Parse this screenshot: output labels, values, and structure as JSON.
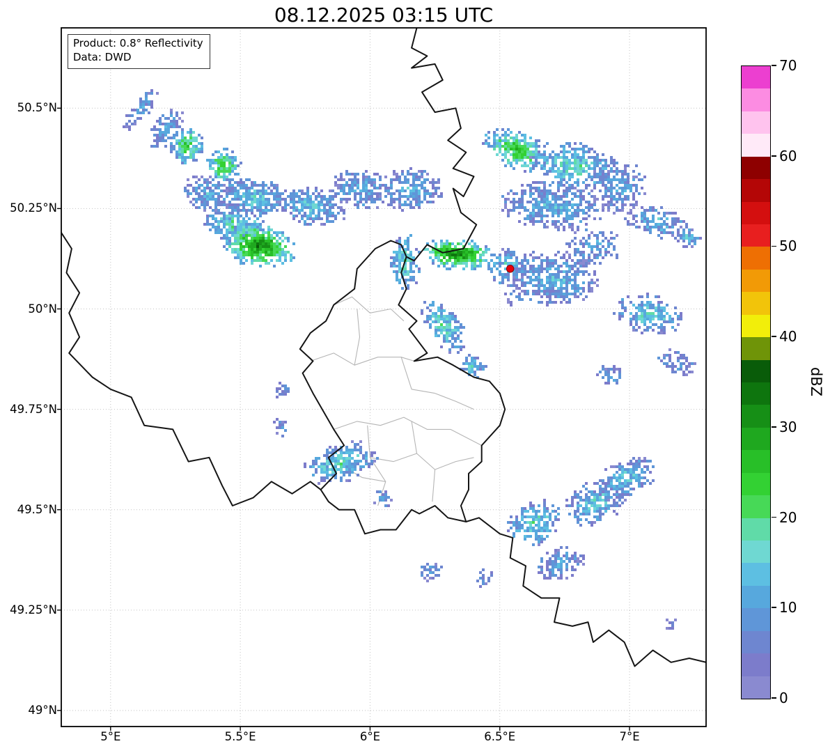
{
  "title": "08.12.2025 03:15 UTC",
  "info_box": {
    "product": "Product: 0.8° Reflectivity",
    "source": "Data: DWD"
  },
  "colorbar": {
    "label": "dBZ",
    "min": 0,
    "max": 70,
    "band_dbz": 2.5,
    "tick_values": [
      0,
      10,
      20,
      30,
      40,
      50,
      60,
      70
    ],
    "colors": [
      "#8a8ad0",
      "#7c7ccb",
      "#6e86d0",
      "#5f96d8",
      "#57a8dd",
      "#5dbfe2",
      "#6fd8d2",
      "#60dba8",
      "#47d957",
      "#33d133",
      "#28bf28",
      "#1fa81f",
      "#168f16",
      "#0e750e",
      "#095c09",
      "#6f9408",
      "#f2ee0a",
      "#f2c40a",
      "#f29a06",
      "#ee6f03",
      "#e81f1f",
      "#d40f0f",
      "#b40606",
      "#8e0000",
      "#ffeaf8",
      "#ffc3ee",
      "#fc8ce2",
      "#ec3fd0"
    ]
  },
  "axes": {
    "lon_ticks": [
      {
        "value": 5.0,
        "label": "5°E"
      },
      {
        "value": 5.5,
        "label": "5.5°E"
      },
      {
        "value": 6.0,
        "label": "6°E"
      },
      {
        "value": 6.5,
        "label": "6.5°E"
      },
      {
        "value": 7.0,
        "label": "7°E"
      }
    ],
    "lat_ticks": [
      {
        "value": 50.5,
        "label": "50.5°N"
      },
      {
        "value": 50.25,
        "label": "50.25°N"
      },
      {
        "value": 50.0,
        "label": "50°N"
      },
      {
        "value": 49.75,
        "label": "49.75°N"
      },
      {
        "value": 49.5,
        "label": "49.5°N"
      },
      {
        "value": 49.25,
        "label": "49.25°N"
      },
      {
        "value": 49.0,
        "label": "49°N"
      }
    ]
  },
  "radar_site": {
    "lon": 6.54,
    "lat": 50.1,
    "marker_color": "#e8000b"
  },
  "chart_data": {
    "type": "heatmap",
    "title": "08.12.2025 03:15 UTC",
    "value_units": "dBZ",
    "value_range": [
      0,
      70
    ],
    "extent": {
      "lon_min": 4.81,
      "lon_max": 7.295,
      "lat_min": 48.96,
      "lat_max": 50.7
    },
    "echo_clusters": [
      {
        "lon": 5.11,
        "lat": 50.5,
        "w": 0.07,
        "h": 0.14,
        "rot": 35,
        "dbz": 10,
        "den": 0.65
      },
      {
        "lon": 5.21,
        "lat": 50.45,
        "w": 0.1,
        "h": 0.12,
        "rot": 35,
        "dbz": 12,
        "den": 0.7
      },
      {
        "lon": 5.29,
        "lat": 50.41,
        "w": 0.14,
        "h": 0.1,
        "rot": 30,
        "dbz": 24,
        "den": 0.75
      },
      {
        "lon": 5.43,
        "lat": 50.36,
        "w": 0.14,
        "h": 0.09,
        "rot": 25,
        "dbz": 26,
        "den": 0.8
      },
      {
        "lon": 5.37,
        "lat": 50.29,
        "w": 0.22,
        "h": 0.09,
        "rot": 15,
        "dbz": 12,
        "den": 0.7
      },
      {
        "lon": 5.55,
        "lat": 50.28,
        "w": 0.3,
        "h": 0.1,
        "rot": 12,
        "dbz": 16,
        "den": 0.78
      },
      {
        "lon": 5.77,
        "lat": 50.26,
        "w": 0.28,
        "h": 0.1,
        "rot": 10,
        "dbz": 14,
        "den": 0.72
      },
      {
        "lon": 5.96,
        "lat": 50.3,
        "w": 0.24,
        "h": 0.1,
        "rot": 8,
        "dbz": 12,
        "den": 0.68
      },
      {
        "lon": 6.15,
        "lat": 50.3,
        "w": 0.26,
        "h": 0.11,
        "rot": 5,
        "dbz": 13,
        "den": 0.68
      },
      {
        "lon": 5.48,
        "lat": 50.21,
        "w": 0.26,
        "h": 0.09,
        "rot": 10,
        "dbz": 20,
        "den": 0.8
      },
      {
        "lon": 5.57,
        "lat": 50.16,
        "w": 0.3,
        "h": 0.11,
        "rot": 8,
        "dbz": 33,
        "den": 0.88
      },
      {
        "lon": 6.13,
        "lat": 50.12,
        "w": 0.12,
        "h": 0.15,
        "rot": 0,
        "dbz": 18,
        "den": 0.72
      },
      {
        "lon": 6.33,
        "lat": 50.14,
        "w": 0.28,
        "h": 0.08,
        "rot": 5,
        "dbz": 34,
        "den": 0.88
      },
      {
        "lon": 6.52,
        "lat": 50.11,
        "w": 0.16,
        "h": 0.1,
        "rot": 0,
        "dbz": 15,
        "den": 0.6
      },
      {
        "lon": 6.56,
        "lat": 50.4,
        "w": 0.28,
        "h": 0.1,
        "rot": 20,
        "dbz": 26,
        "den": 0.78
      },
      {
        "lon": 6.78,
        "lat": 50.36,
        "w": 0.36,
        "h": 0.12,
        "rot": 10,
        "dbz": 18,
        "den": 0.72
      },
      {
        "lon": 6.7,
        "lat": 50.26,
        "w": 0.42,
        "h": 0.12,
        "rot": 5,
        "dbz": 13,
        "den": 0.72
      },
      {
        "lon": 6.95,
        "lat": 50.31,
        "w": 0.22,
        "h": 0.14,
        "rot": 0,
        "dbz": 11,
        "den": 0.6
      },
      {
        "lon": 6.7,
        "lat": 50.08,
        "w": 0.36,
        "h": 0.14,
        "rot": 5,
        "dbz": 13,
        "den": 0.68
      },
      {
        "lon": 6.86,
        "lat": 50.16,
        "w": 0.22,
        "h": 0.1,
        "rot": 0,
        "dbz": 11,
        "den": 0.55
      },
      {
        "lon": 6.28,
        "lat": 49.96,
        "w": 0.13,
        "h": 0.16,
        "rot": -35,
        "dbz": 18,
        "den": 0.72
      },
      {
        "lon": 6.39,
        "lat": 49.86,
        "w": 0.11,
        "h": 0.07,
        "rot": -20,
        "dbz": 15,
        "den": 0.65
      },
      {
        "lon": 7.1,
        "lat": 50.22,
        "w": 0.26,
        "h": 0.08,
        "rot": 10,
        "dbz": 13,
        "den": 0.62
      },
      {
        "lon": 7.22,
        "lat": 50.18,
        "w": 0.1,
        "h": 0.05,
        "rot": 0,
        "dbz": 16,
        "den": 0.7
      },
      {
        "lon": 7.07,
        "lat": 49.99,
        "w": 0.28,
        "h": 0.1,
        "rot": 10,
        "dbz": 17,
        "den": 0.68
      },
      {
        "lon": 7.17,
        "lat": 49.87,
        "w": 0.18,
        "h": 0.06,
        "rot": 15,
        "dbz": 10,
        "den": 0.6
      },
      {
        "lon": 5.66,
        "lat": 49.8,
        "w": 0.07,
        "h": 0.05,
        "rot": 0,
        "dbz": 8,
        "den": 0.6
      },
      {
        "lon": 5.65,
        "lat": 49.71,
        "w": 0.06,
        "h": 0.06,
        "rot": 0,
        "dbz": 8,
        "den": 0.6
      },
      {
        "lon": 5.88,
        "lat": 49.62,
        "w": 0.3,
        "h": 0.1,
        "rot": -15,
        "dbz": 17,
        "den": 0.72
      },
      {
        "lon": 6.04,
        "lat": 49.53,
        "w": 0.08,
        "h": 0.05,
        "rot": -10,
        "dbz": 10,
        "den": 0.6
      },
      {
        "lon": 6.23,
        "lat": 49.35,
        "w": 0.1,
        "h": 0.05,
        "rot": -10,
        "dbz": 9,
        "den": 0.6
      },
      {
        "lon": 6.44,
        "lat": 49.33,
        "w": 0.07,
        "h": 0.05,
        "rot": 0,
        "dbz": 9,
        "den": 0.6
      },
      {
        "lon": 6.63,
        "lat": 49.47,
        "w": 0.22,
        "h": 0.11,
        "rot": -25,
        "dbz": 18,
        "den": 0.72
      },
      {
        "lon": 6.86,
        "lat": 49.52,
        "w": 0.24,
        "h": 0.11,
        "rot": -20,
        "dbz": 16,
        "den": 0.68
      },
      {
        "lon": 6.73,
        "lat": 49.37,
        "w": 0.2,
        "h": 0.08,
        "rot": -15,
        "dbz": 12,
        "den": 0.62
      },
      {
        "lon": 6.98,
        "lat": 49.58,
        "w": 0.26,
        "h": 0.1,
        "rot": -25,
        "dbz": 14,
        "den": 0.65
      },
      {
        "lon": 7.16,
        "lat": 49.22,
        "w": 0.08,
        "h": 0.035,
        "rot": 10,
        "dbz": 8,
        "den": 0.6
      },
      {
        "lon": 6.92,
        "lat": 49.84,
        "w": 0.14,
        "h": 0.05,
        "rot": 15,
        "dbz": 10,
        "den": 0.55
      },
      {
        "lon": 6.56,
        "lat": 50.04,
        "w": 0.1,
        "h": 0.06,
        "rot": 0,
        "dbz": 10,
        "den": 0.5
      }
    ],
    "borders_national": [
      [
        [
          6.18,
          50.7
        ],
        [
          6.16,
          50.65
        ],
        [
          6.22,
          50.63
        ],
        [
          6.16,
          50.6
        ],
        [
          6.25,
          50.61
        ],
        [
          6.28,
          50.57
        ],
        [
          6.2,
          50.54
        ],
        [
          6.25,
          50.49
        ],
        [
          6.33,
          50.5
        ],
        [
          6.35,
          50.45
        ],
        [
          6.3,
          50.42
        ],
        [
          6.37,
          50.39
        ],
        [
          6.32,
          50.35
        ],
        [
          6.4,
          50.33
        ],
        [
          6.36,
          50.28
        ],
        [
          6.32,
          50.3
        ],
        [
          6.35,
          50.24
        ],
        [
          6.41,
          50.21
        ],
        [
          6.36,
          50.15
        ],
        [
          6.28,
          50.14
        ],
        [
          6.22,
          50.16
        ],
        [
          6.17,
          50.12
        ],
        [
          6.14,
          50.13
        ]
      ],
      [
        [
          6.14,
          50.13
        ],
        [
          6.12,
          50.09
        ],
        [
          6.14,
          50.05
        ],
        [
          6.11,
          50.01
        ],
        [
          6.18,
          49.97
        ],
        [
          6.15,
          49.95
        ],
        [
          6.22,
          49.89
        ],
        [
          6.17,
          49.87
        ],
        [
          6.26,
          49.88
        ],
        [
          6.32,
          49.86
        ],
        [
          6.4,
          49.83
        ],
        [
          6.46,
          49.82
        ],
        [
          6.5,
          49.79
        ],
        [
          6.52,
          49.75
        ],
        [
          6.5,
          49.71
        ],
        [
          6.43,
          49.66
        ],
        [
          6.43,
          49.62
        ],
        [
          6.38,
          49.59
        ],
        [
          6.38,
          49.55
        ],
        [
          6.35,
          49.51
        ],
        [
          6.37,
          49.47
        ],
        [
          6.3,
          49.48
        ],
        [
          6.25,
          49.51
        ],
        [
          6.19,
          49.49
        ],
        [
          6.16,
          49.5
        ],
        [
          6.1,
          49.45
        ],
        [
          6.04,
          49.45
        ],
        [
          5.98,
          49.44
        ],
        [
          5.94,
          49.5
        ],
        [
          5.88,
          49.5
        ],
        [
          5.84,
          49.52
        ],
        [
          5.81,
          49.55
        ],
        [
          5.87,
          49.59
        ],
        [
          5.84,
          49.63
        ],
        [
          5.9,
          49.66
        ],
        [
          5.86,
          49.7
        ],
        [
          5.78,
          49.79
        ],
        [
          5.74,
          49.84
        ],
        [
          5.78,
          49.87
        ],
        [
          5.73,
          49.9
        ],
        [
          5.77,
          49.94
        ],
        [
          5.83,
          49.97
        ],
        [
          5.86,
          50.01
        ],
        [
          5.94,
          50.05
        ],
        [
          5.95,
          50.1
        ],
        [
          6.02,
          50.15
        ],
        [
          6.08,
          50.17
        ],
        [
          6.12,
          50.16
        ],
        [
          6.14,
          50.13
        ]
      ],
      [
        [
          4.81,
          50.19
        ],
        [
          4.85,
          50.15
        ],
        [
          4.83,
          50.09
        ],
        [
          4.88,
          50.04
        ],
        [
          4.84,
          49.99
        ],
        [
          4.88,
          49.93
        ],
        [
          4.84,
          49.89
        ],
        [
          4.93,
          49.83
        ],
        [
          5.0,
          49.8
        ],
        [
          5.08,
          49.78
        ],
        [
          5.13,
          49.71
        ],
        [
          5.24,
          49.7
        ],
        [
          5.3,
          49.62
        ],
        [
          5.38,
          49.63
        ],
        [
          5.43,
          49.56
        ],
        [
          5.47,
          49.51
        ],
        [
          5.55,
          49.53
        ],
        [
          5.62,
          49.57
        ],
        [
          5.7,
          49.54
        ],
        [
          5.77,
          49.57
        ],
        [
          5.81,
          49.55
        ]
      ],
      [
        [
          6.37,
          49.47
        ],
        [
          6.42,
          49.48
        ],
        [
          6.5,
          49.44
        ],
        [
          6.55,
          49.43
        ],
        [
          6.54,
          49.38
        ],
        [
          6.6,
          49.36
        ],
        [
          6.59,
          49.31
        ],
        [
          6.66,
          49.28
        ],
        [
          6.73,
          49.28
        ],
        [
          6.71,
          49.22
        ],
        [
          6.78,
          49.21
        ],
        [
          6.84,
          49.22
        ],
        [
          6.86,
          49.17
        ],
        [
          6.92,
          49.2
        ],
        [
          6.98,
          49.17
        ],
        [
          7.02,
          49.11
        ],
        [
          7.09,
          49.15
        ],
        [
          7.16,
          49.12
        ],
        [
          7.23,
          49.13
        ],
        [
          7.295,
          49.12
        ]
      ]
    ],
    "borders_regional": [
      [
        [
          5.86,
          50.01
        ],
        [
          5.93,
          50.03
        ],
        [
          6.0,
          49.99
        ],
        [
          6.08,
          50.0
        ],
        [
          6.13,
          49.97
        ]
      ],
      [
        [
          5.77,
          49.87
        ],
        [
          5.86,
          49.89
        ],
        [
          5.94,
          49.86
        ],
        [
          6.03,
          49.88
        ],
        [
          6.12,
          49.88
        ],
        [
          6.17,
          49.87
        ]
      ],
      [
        [
          5.94,
          49.86
        ],
        [
          5.96,
          49.93
        ],
        [
          5.95,
          50.0
        ]
      ],
      [
        [
          6.12,
          49.88
        ],
        [
          6.16,
          49.8
        ],
        [
          6.25,
          49.79
        ]
      ],
      [
        [
          5.86,
          49.7
        ],
        [
          5.95,
          49.72
        ],
        [
          6.04,
          49.71
        ],
        [
          6.13,
          49.73
        ],
        [
          6.22,
          49.7
        ],
        [
          6.31,
          49.7
        ],
        [
          6.43,
          49.66
        ]
      ],
      [
        [
          5.99,
          49.71
        ],
        [
          6.0,
          49.63
        ],
        [
          6.06,
          49.57
        ],
        [
          6.03,
          49.51
        ]
      ],
      [
        [
          6.16,
          49.72
        ],
        [
          6.18,
          49.64
        ],
        [
          6.25,
          49.6
        ],
        [
          6.24,
          49.52
        ]
      ],
      [
        [
          6.0,
          49.63
        ],
        [
          6.09,
          49.62
        ],
        [
          6.18,
          49.64
        ]
      ],
      [
        [
          6.25,
          49.79
        ],
        [
          6.33,
          49.77
        ],
        [
          6.4,
          49.75
        ]
      ],
      [
        [
          5.89,
          49.61
        ],
        [
          5.97,
          49.58
        ],
        [
          6.06,
          49.57
        ]
      ],
      [
        [
          6.25,
          49.6
        ],
        [
          6.33,
          49.62
        ],
        [
          6.4,
          49.63
        ]
      ]
    ]
  }
}
